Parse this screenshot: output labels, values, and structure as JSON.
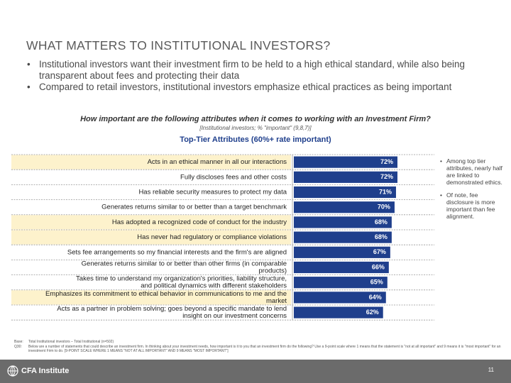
{
  "title": "WHAT MATTERS TO INSTITUTIONAL INVESTORS?",
  "bullets": [
    "Institutional investors want their investment firm to be held to a high ethical standard, while also being transparent about fees and protecting their data",
    "Compared to retail investors, institutional investors emphasize ethical practices as being important"
  ],
  "question": "How important are the following attributes when it comes to working with an Investment Firm?",
  "base_note": "[Institutional investors; % \"important\" (9,8,7)]",
  "side_notes": [
    "Among top tier attributes, nearly half are linked to demonstrated ethics.",
    "Of note, fee disclosure is more important than fee alignment."
  ],
  "footnote": {
    "base_label": "Base:",
    "base_text": "Total Institutional investors – Total Institutional (n=502)",
    "q_label": "Q30:",
    "q_text": "Below are a number of statements that could describe an investment firm. In thinking about your investment needs, how important is it to you that an investment firm do the following? Use a 9-point scale where 1 means that the statement is \"not at all important\" and 9 means it is \"most important\" for an investment Firm to do. [9-POINT SCALE WHERE 1 MEANS \"NOT AT ALL IMPORTANT\" AND 9 MEANS \"MOST IMPORTANT\"]"
  },
  "footer": {
    "logo_text": "CFA Institute",
    "page_number": "11"
  },
  "colors": {
    "bar": "#1f3f8c",
    "highlight_row": "#fdf2cc",
    "footer": "#6b6b6b"
  },
  "chart_data": {
    "type": "bar",
    "orientation": "horizontal",
    "title": "Top-Tier Attributes (60%+ rate important)",
    "categories": [
      "Acts in an ethical manner in all our interactions",
      "Fully discloses fees and other costs",
      "Has reliable security measures to protect my data",
      "Generates returns similar to or better than a target benchmark",
      "Has adopted a recognized code of conduct for the industry",
      "Has never had regulatory or compliance violations",
      "Sets fee arrangements so my financial interests and the firm's are aligned",
      "Generates returns similar to or better than other firms (in comparable products)",
      "Takes time to understand my organization's priorities, liability structure, and political dynamics with different stakeholders",
      "Emphasizes its commitment to ethical behavior in communications to me and the market",
      "Acts as a partner in problem solving; goes beyond a specific mandate to lend insight on our investment concerns"
    ],
    "values": [
      72,
      72,
      71,
      70,
      68,
      68,
      67,
      66,
      65,
      64,
      62
    ],
    "value_labels": [
      "72%",
      "72%",
      "71%",
      "70%",
      "68%",
      "68%",
      "67%",
      "66%",
      "65%",
      "64%",
      "62%"
    ],
    "highlighted": [
      true,
      false,
      false,
      false,
      true,
      true,
      false,
      false,
      false,
      true,
      false
    ],
    "xlim": [
      0,
      72
    ],
    "grid": false
  }
}
